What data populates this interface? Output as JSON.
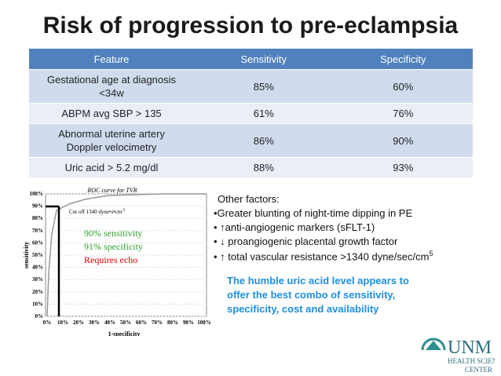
{
  "title": "Risk of progression to pre-eclampsia",
  "table": {
    "header": [
      "Feature",
      "Sensitivity",
      "Specificity"
    ],
    "rows": [
      [
        "Gestational age at diagnosis\n<34w",
        "85%",
        "60%"
      ],
      [
        "ABPM avg SBP > 135",
        "61%",
        "76%"
      ],
      [
        "Abnormal uterine artery\nDoppler velocimetry",
        "86%",
        "90%"
      ],
      [
        "Uric acid > 5.2 mg/dl",
        "88%",
        "93%"
      ]
    ]
  },
  "roc": {
    "title": "ROC curve for TVR",
    "cutoff": {
      "text": "Cut off 1340 dyne•s•cm",
      "sup": "-5"
    },
    "y_label": "sensitivity",
    "x_label": "1-specificity",
    "xticks": [
      "0%",
      "10%",
      "20%",
      "30%",
      "40%",
      "50%",
      "60%",
      "70%",
      "80%",
      "90%",
      "100%"
    ],
    "yticks": [
      "0%",
      "10%",
      "20%",
      "30%",
      "40%",
      "50%",
      "60%",
      "70%",
      "80%",
      "90%",
      "100%"
    ],
    "notes": [
      {
        "text": "90% sensitivity",
        "color": "#2ca02c"
      },
      {
        "text": "91% specificity",
        "color": "#2ca02c"
      },
      {
        "text": "Requires echo",
        "color": "#e00000"
      }
    ]
  },
  "other_factors": {
    "heading": "Other factors:",
    "items": [
      {
        "text": "•Greater blunting of night-time dipping in PE"
      },
      {
        "text": "• ↑anti-angiogenic markers (sFLT-1)"
      },
      {
        "text": "• ↓ proangiogenic placental growth factor"
      },
      {
        "text": "• ↑ total vascular resistance >1340 dyne/sec/cm",
        "sup": "5"
      }
    ]
  },
  "conclusion": [
    "The humble uric acid level appears to",
    "offer the best combo of sensitivity,",
    "specificity, cost and availability"
  ],
  "logo": {
    "name": "UNM",
    "line1": "HEALTH SCIENCES",
    "line2": "CENTER"
  }
}
